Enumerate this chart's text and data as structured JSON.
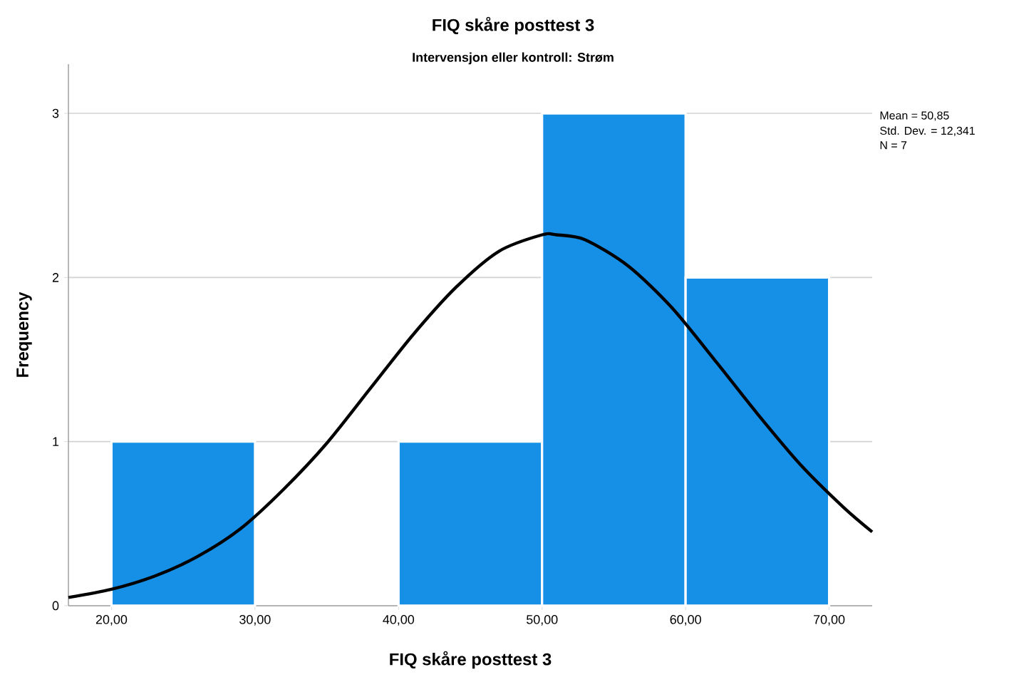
{
  "chart_data": {
    "type": "histogram",
    "title": "FIQ skåre posttest 3",
    "subtitle": "Intervensjon eller kontroll: Strøm",
    "xlabel": "FIQ skåre posttest 3",
    "ylabel": "Frequency",
    "bins": [
      20,
      30,
      40,
      50,
      60,
      70
    ],
    "values": [
      1,
      0,
      1,
      3,
      2
    ],
    "color": "#1590e6",
    "series": [
      {
        "type": "line",
        "color": "#000000",
        "x": [
          17,
          20,
          23,
          26,
          29,
          32,
          35,
          38,
          41,
          44,
          47,
          50,
          51,
          53,
          56,
          59,
          62,
          65,
          68,
          71,
          73
        ],
        "values": [
          0.05,
          0.1,
          0.18,
          0.3,
          0.47,
          0.71,
          0.99,
          1.32,
          1.65,
          1.94,
          2.16,
          2.26,
          2.26,
          2.23,
          2.07,
          1.82,
          1.5,
          1.17,
          0.86,
          0.6,
          0.45
        ]
      }
    ],
    "xlim": [
      17,
      73
    ],
    "ylim": [
      0,
      3.3
    ],
    "xticks": [
      {
        "value": 20,
        "label": "20,00"
      },
      {
        "value": 30,
        "label": "30,00"
      },
      {
        "value": 40,
        "label": "40,00"
      },
      {
        "value": 50,
        "label": "50,00"
      },
      {
        "value": 60,
        "label": "60,00"
      },
      {
        "value": 70,
        "label": "70,00"
      }
    ],
    "yticks": [
      0,
      1,
      2,
      3
    ],
    "grid": "y",
    "annotations": [
      "Mean = 50,85",
      "Std. Dev. = 12,341",
      "N = 7"
    ]
  }
}
